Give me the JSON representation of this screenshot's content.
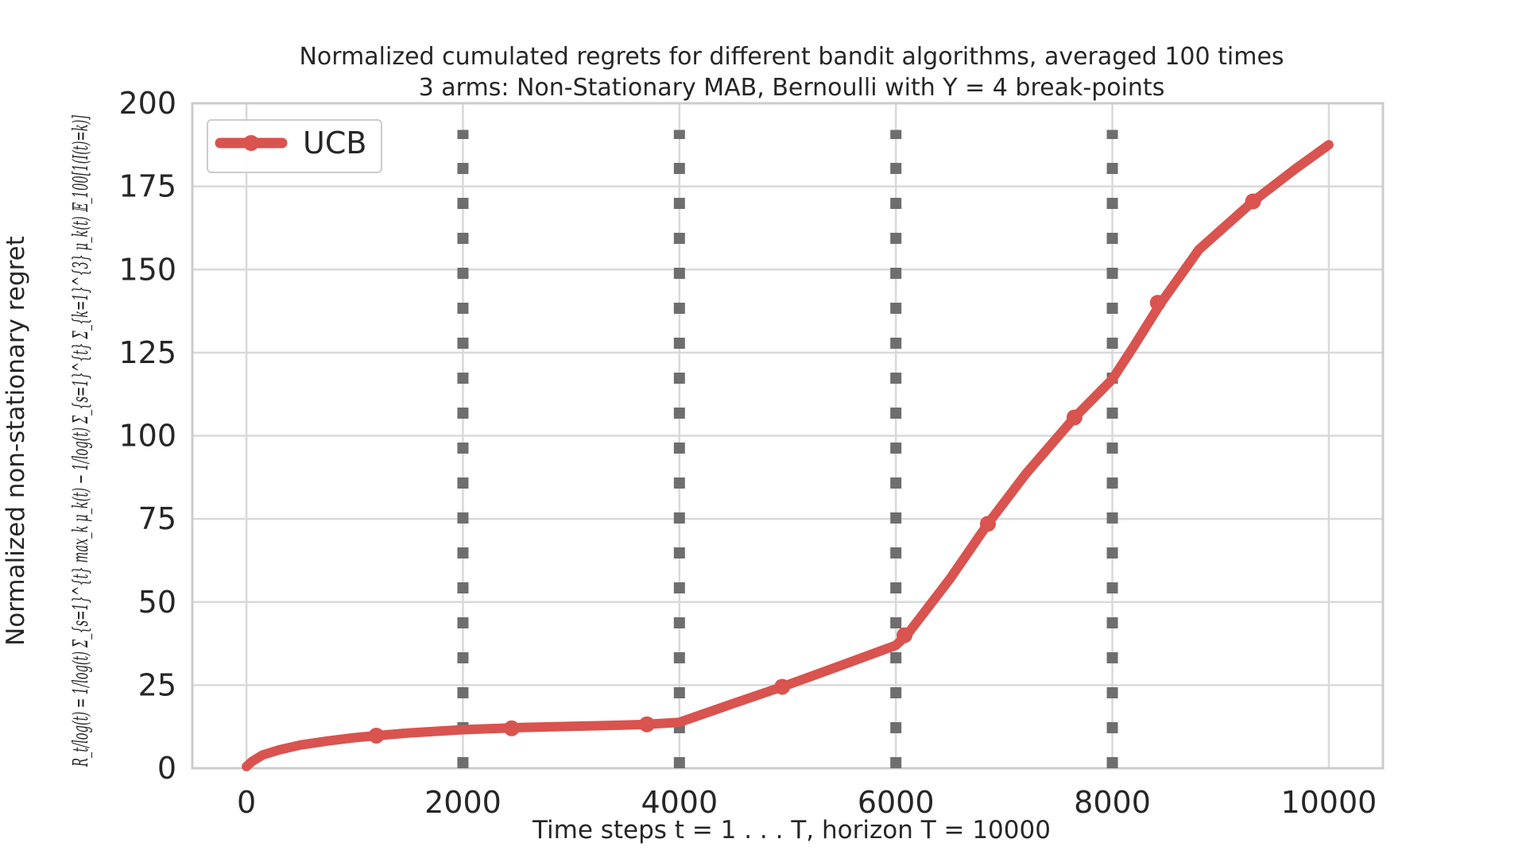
{
  "chart_data": {
    "type": "line",
    "title": [
      "Normalized cumulated regrets for different bandit algorithms, averaged 100 times",
      "3 arms: Non-Stationary MAB, Bernoulli with Υ = 4 break-points"
    ],
    "xlabel": "Time steps t = 1 . . . T, horizon T = 10000",
    "ylabel": "Normalized non-stationary regret",
    "ylabel_formula": "R_t/log(t) = 1/log(t) Σ_{s=1}^{t} max_k μ_k(t) − 1/log(t) Σ_{s=1}^{t} Σ_{k=1}^{3} μ_k(t) 𝔼_100[1(I(t)=k)]",
    "xlim": [
      -500,
      10500
    ],
    "ylim": [
      0,
      200
    ],
    "xticks": [
      0,
      2000,
      4000,
      6000,
      8000,
      10000
    ],
    "yticks": [
      0,
      25,
      50,
      75,
      100,
      125,
      150,
      175,
      200
    ],
    "grid": true,
    "legend_position": "top-left",
    "breakpoints": [
      2000,
      4000,
      6000,
      8000
    ],
    "series": [
      {
        "name": "UCB",
        "color": "#d9534f",
        "line": {
          "x": [
            0,
            50,
            150,
            300,
            500,
            750,
            1000,
            1200,
            1500,
            2000,
            2500,
            3000,
            3500,
            3700,
            4000,
            4500,
            4950,
            5500,
            6000,
            6100,
            6500,
            6850,
            7200,
            7650,
            8000,
            8200,
            8450,
            8800,
            9300,
            9700,
            10000
          ],
          "y": [
            0.5,
            2,
            4,
            5.5,
            7,
            8.2,
            9.2,
            9.8,
            10.6,
            11.6,
            12.2,
            12.6,
            13,
            13.2,
            13.8,
            19.5,
            24.5,
            31,
            37,
            40,
            57,
            73.5,
            88.5,
            105.5,
            117,
            127,
            140,
            156,
            170.5,
            180.5,
            187.5
          ]
        },
        "markers": {
          "x": [
            1200,
            2450,
            3700,
            4950,
            6080,
            6850,
            7650,
            8420,
            9300
          ],
          "y": [
            9.8,
            12,
            13.2,
            24.5,
            40,
            73.5,
            105.5,
            140,
            170.5
          ]
        }
      }
    ]
  }
}
